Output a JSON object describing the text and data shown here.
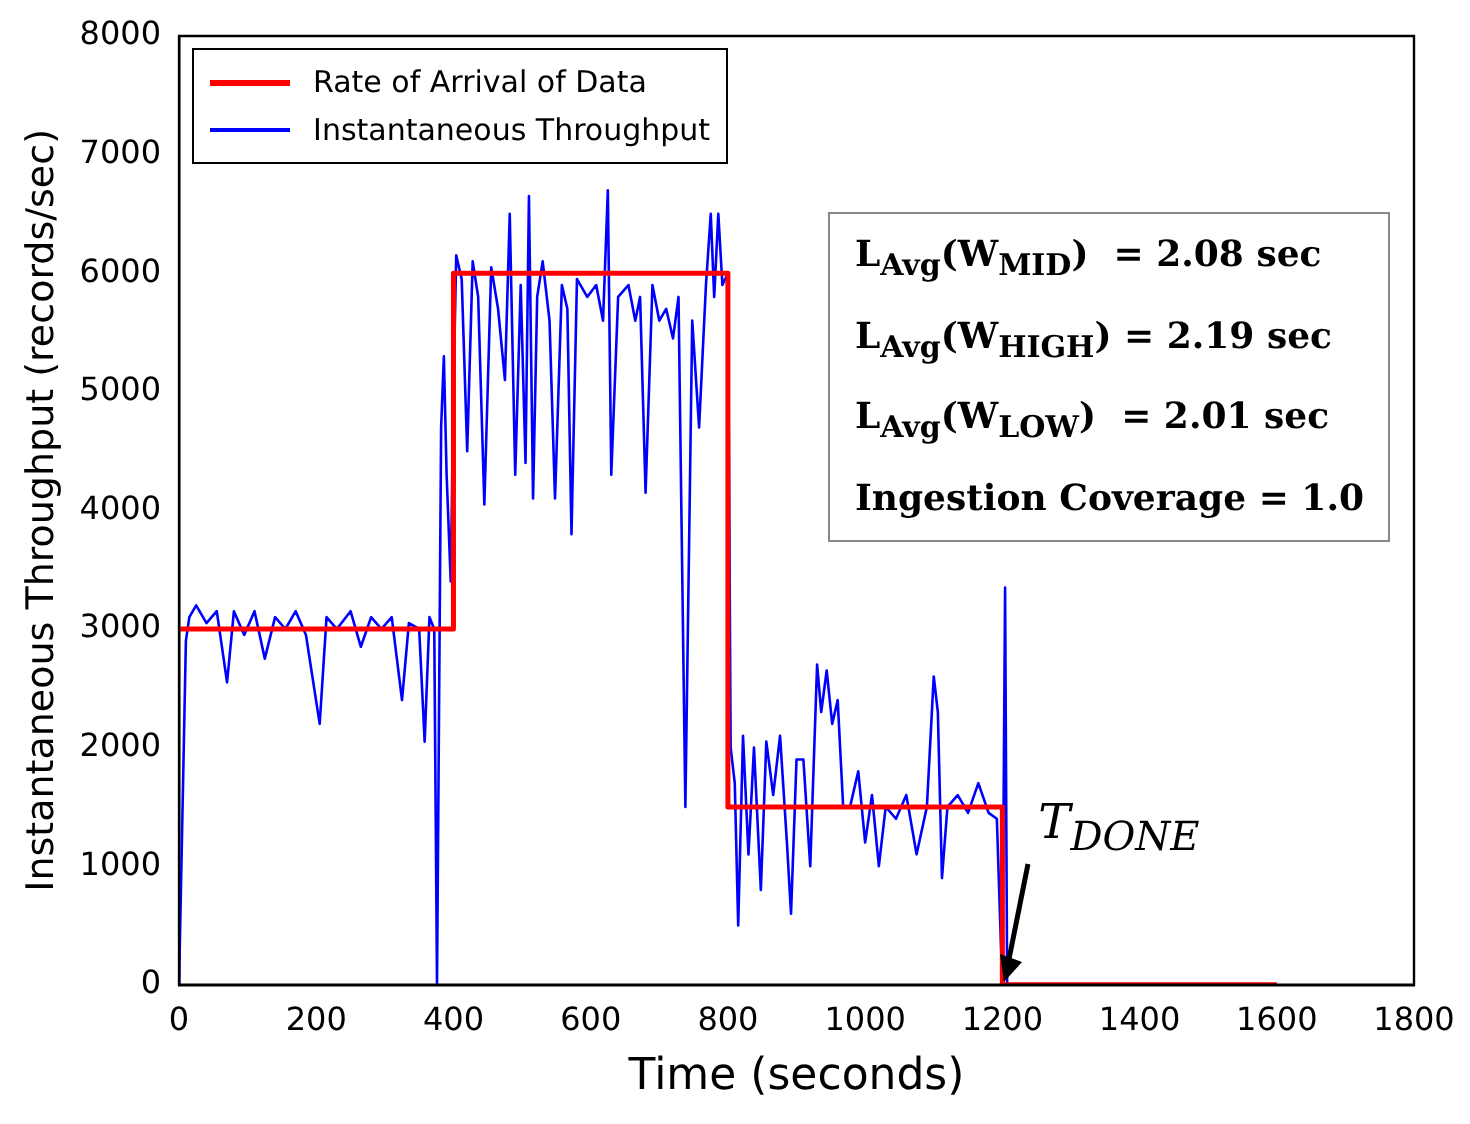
{
  "chart_data": {
    "type": "line",
    "xlabel": "Time (seconds)",
    "ylabel": "Instantaneous Throughput (records/sec)",
    "xlim": [
      0,
      1800
    ],
    "xticks": [
      0,
      200,
      400,
      600,
      800,
      1000,
      1200,
      1400,
      1600,
      1800
    ],
    "ylim": [
      0,
      8000
    ],
    "yticks": [
      0,
      1000,
      2000,
      3000,
      4000,
      5000,
      6000,
      7000,
      8000
    ],
    "legend": "top left",
    "grid": false,
    "marker": "none",
    "line_style": "solid",
    "annotations": [
      "L$_{Avg}$(W$_{MID}$)  = 2.08 sec",
      "L$_{Avg}$(W$_{HIGH}$) = 2.19 sec",
      "L$_{Avg}$(W$_{LOW}$)  = 2.01 sec",
      "Ingestion Coverage = 1.0",
      {
        "text": "T$_{DONE}$",
        "x": 1200,
        "y": 0
      }
    ],
    "series": [
      {
        "name": "Rate of Arrival of Data",
        "type": "step",
        "color": "#ff0000",
        "x": [
          0,
          400,
          800,
          1200,
          1600
        ],
        "values": [
          3000,
          6000,
          1500,
          0,
          0
        ]
      },
      {
        "name": "Instantaneous Throughput",
        "type": "line",
        "color": "#0000ff",
        "x": [
          0,
          10,
          15,
          25,
          40,
          55,
          70,
          80,
          95,
          110,
          125,
          140,
          155,
          170,
          185,
          205,
          215,
          230,
          250,
          265,
          280,
          295,
          310,
          325,
          335,
          350,
          358,
          365,
          372,
          376,
          382,
          386,
          390,
          396,
          400,
          404,
          412,
          420,
          428,
          436,
          445,
          455,
          465,
          475,
          482,
          490,
          498,
          505,
          510,
          516,
          522,
          530,
          540,
          548,
          558,
          566,
          572,
          580,
          595,
          608,
          618,
          625,
          630,
          640,
          655,
          665,
          672,
          680,
          690,
          700,
          710,
          720,
          728,
          738,
          748,
          758,
          768,
          775,
          780,
          786,
          792,
          800,
          804,
          810,
          815,
          822,
          830,
          838,
          848,
          856,
          866,
          876,
          886,
          892,
          900,
          910,
          920,
          930,
          936,
          944,
          952,
          960,
          968,
          978,
          990,
          1000,
          1010,
          1020,
          1030,
          1045,
          1060,
          1075,
          1090,
          1100,
          1106,
          1112,
          1120,
          1135,
          1150,
          1165,
          1180,
          1192,
          1197,
          1200,
          1204,
          1207,
          1600
        ],
        "values": [
          0,
          2900,
          3100,
          3200,
          3050,
          3150,
          2550,
          3150,
          2950,
          3150,
          2750,
          3100,
          3000,
          3150,
          2950,
          2200,
          3100,
          3000,
          3150,
          2850,
          3100,
          3000,
          3100,
          2400,
          3050,
          3000,
          2050,
          3100,
          3000,
          0,
          4700,
          5300,
          4300,
          3400,
          5000,
          6150,
          5950,
          4500,
          6100,
          5800,
          4050,
          6050,
          5700,
          5100,
          6500,
          4300,
          5900,
          4400,
          6650,
          4100,
          5800,
          6100,
          5600,
          4100,
          5900,
          5700,
          3800,
          5950,
          5800,
          5900,
          5600,
          6700,
          4300,
          5800,
          5900,
          5600,
          5800,
          4150,
          5900,
          5600,
          5700,
          5450,
          5800,
          1500,
          5600,
          4700,
          5900,
          6500,
          5800,
          6500,
          5900,
          6000,
          2000,
          1700,
          500,
          2100,
          1100,
          2000,
          800,
          2050,
          1600,
          2100,
          1200,
          600,
          1900,
          1900,
          1000,
          2700,
          2300,
          2650,
          2200,
          2400,
          1500,
          1500,
          1800,
          1200,
          1600,
          1000,
          1500,
          1400,
          1600,
          1100,
          1500,
          2600,
          2300,
          900,
          1500,
          1600,
          1450,
          1700,
          1450,
          1400,
          500,
          0,
          3350,
          0,
          0
        ]
      }
    ]
  }
}
